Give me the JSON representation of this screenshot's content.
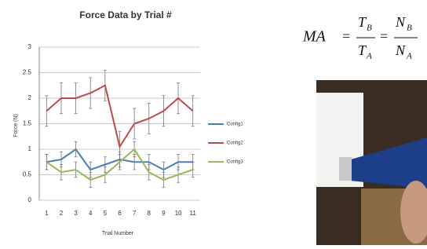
{
  "chart_data": {
    "type": "line",
    "title": "Force Data by Trial #",
    "x_label": "Trial Number",
    "y_label": "Force (N)",
    "categories": [
      "1",
      "2",
      "3",
      "4",
      "5",
      "6",
      "7",
      "8",
      "9",
      "10",
      "11"
    ],
    "ylim": [
      0,
      3
    ],
    "yticks": [
      0,
      0.5,
      1,
      1.5,
      2,
      2.5,
      3
    ],
    "grid": true,
    "legend": "right",
    "series": [
      {
        "name": "Config1",
        "color": "#4a7ebb",
        "values": [
          0.75,
          0.8,
          1.0,
          0.6,
          0.7,
          0.8,
          0.75,
          0.75,
          0.6,
          0.75,
          0.75
        ],
        "errors": [
          0.15,
          0.15,
          0.15,
          0.15,
          0.15,
          0.15,
          0.15,
          0.15,
          0.15,
          0.15,
          0.15
        ]
      },
      {
        "name": "Config2",
        "color": "#be4b48",
        "values": [
          1.75,
          2.0,
          2.0,
          2.1,
          2.25,
          1.05,
          1.5,
          1.6,
          1.75,
          2.0,
          1.75
        ],
        "errors": [
          0.3,
          0.3,
          0.3,
          0.3,
          0.3,
          0.3,
          0.3,
          0.3,
          0.3,
          0.3,
          0.3
        ]
      },
      {
        "name": "Config3",
        "color": "#98b954",
        "values": [
          0.75,
          0.55,
          0.6,
          0.4,
          0.5,
          0.75,
          1.0,
          0.55,
          0.4,
          0.5,
          0.6
        ],
        "errors": [
          0.15,
          0.15,
          0.15,
          0.15,
          0.15,
          0.15,
          0.15,
          0.15,
          0.15,
          0.15,
          0.15
        ]
      }
    ]
  },
  "formula": {
    "lhs": "MA",
    "equals": "=",
    "fractions": [
      {
        "num": "T",
        "num_sub": "B",
        "den": "T",
        "den_sub": "A"
      },
      {
        "num": "N",
        "num_sub": "B",
        "den": "N",
        "den_sub": "A"
      }
    ]
  }
}
